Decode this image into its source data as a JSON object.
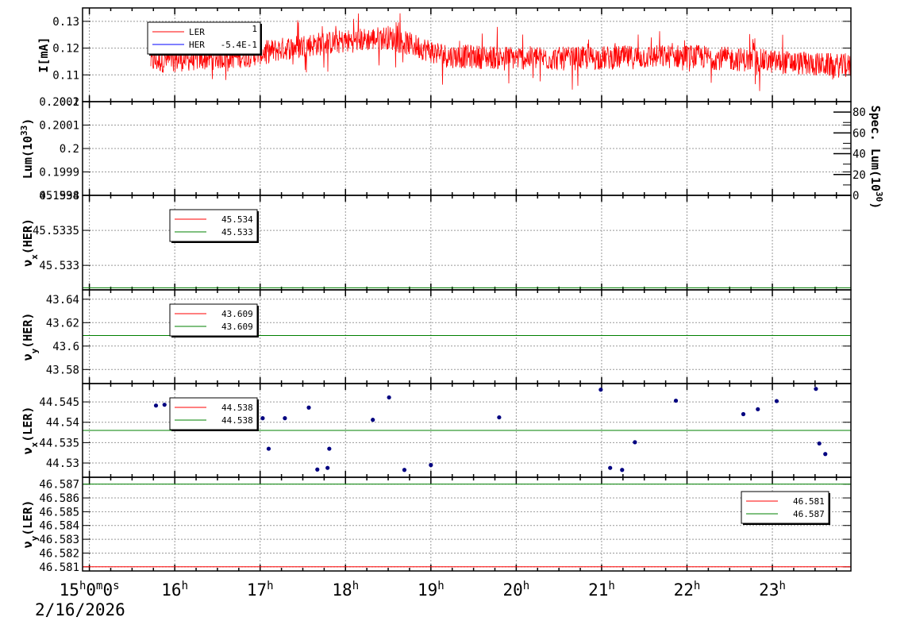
{
  "chart_data": [
    {
      "type": "line",
      "ylabel": "I[mA]",
      "ylim": [
        0.1,
        0.135
      ],
      "yticks": [
        "0.13",
        "0.12",
        "0.11",
        "0.1"
      ],
      "legend": {
        "placement": "top-left",
        "entries": [
          {
            "label": "LER",
            "extra": "1",
            "color": "#ff0000"
          },
          {
            "label": "HER",
            "extra": "-5.4E-1",
            "color": "#0000ff"
          }
        ]
      },
      "series": [
        {
          "name": "LER",
          "color": "#ff0000",
          "x_start_hours": 15.72,
          "x_end_hours": 24.0,
          "base": 0.114,
          "noise": 0.0045,
          "level_changes": [
            [
              15.72,
              0.115
            ],
            [
              16.8,
              0.117
            ],
            [
              17.5,
              0.121
            ],
            [
              18.5,
              0.124
            ],
            [
              19.2,
              0.117
            ],
            [
              20.5,
              0.116
            ],
            [
              22.0,
              0.117
            ],
            [
              23.0,
              0.115
            ],
            [
              24.0,
              0.113
            ]
          ]
        }
      ]
    },
    {
      "type": "line",
      "ylabel": "Lum(10^33)",
      "ylim": [
        0.1998,
        0.2002
      ],
      "yticks": [
        "0.2002",
        "0.2001",
        "0.2",
        "0.1999",
        "0.1998"
      ],
      "y2label": "Spec. Lum(10^30)",
      "y2lim": [
        0,
        90
      ],
      "y2ticks": [
        "80",
        "60",
        "40",
        "20",
        "0"
      ],
      "series": []
    },
    {
      "type": "line",
      "ylabel": "νx(HER)",
      "ylim": [
        45.53265,
        45.534
      ],
      "yticks": [
        "45.534",
        "45.5335",
        "45.533"
      ],
      "legend": {
        "placement": "top-left",
        "entries": [
          {
            "label": "45.534",
            "color": "#ff0000"
          },
          {
            "label": "45.533",
            "color": "#008000"
          }
        ]
      },
      "series": [
        {
          "name": "45.534",
          "color": "#ff0000",
          "value": 45.534
        },
        {
          "name": "45.533",
          "color": "#008000",
          "value": 45.53268
        }
      ]
    },
    {
      "type": "line",
      "ylabel": "νy(HER)",
      "ylim": [
        43.568,
        43.648
      ],
      "yticks": [
        "43.64",
        "43.62",
        "43.6",
        "43.58"
      ],
      "legend": {
        "placement": "top-left",
        "entries": [
          {
            "label": "43.609",
            "color": "#ff0000"
          },
          {
            "label": "43.609",
            "color": "#008000"
          }
        ]
      },
      "series": [
        {
          "name": "43.609",
          "color": "#ff0000",
          "value": 43.609
        },
        {
          "name": "43.609",
          "color": "#008000",
          "value": 43.609
        }
      ]
    },
    {
      "type": "scatter",
      "ylabel": "νx(LER)",
      "ylim": [
        44.5265,
        44.5495
      ],
      "yticks": [
        "44.545",
        "44.54",
        "44.535",
        "44.53"
      ],
      "legend": {
        "placement": "top-left",
        "entries": [
          {
            "label": "44.538",
            "color": "#ff0000"
          },
          {
            "label": "44.538",
            "color": "#008000"
          }
        ]
      },
      "series": [
        {
          "name": "44.538",
          "color": "#ff0000",
          "value": 44.538
        },
        {
          "name": "44.538",
          "color": "#008000",
          "value": 44.538
        },
        {
          "name": "points",
          "color": "#000080",
          "points": [
            [
              15.78,
              44.5441
            ],
            [
              15.88,
              44.5443
            ],
            [
              17.03,
              44.541
            ],
            [
              17.1,
              44.5335
            ],
            [
              17.29,
              44.541
            ],
            [
              17.57,
              44.5436
            ],
            [
              17.67,
              44.5284
            ],
            [
              17.79,
              44.5288
            ],
            [
              17.81,
              44.5335
            ],
            [
              18.32,
              44.5406
            ],
            [
              18.51,
              44.5461
            ],
            [
              18.69,
              44.5283
            ],
            [
              19.0,
              44.5295
            ],
            [
              19.8,
              44.5412
            ],
            [
              20.99,
              44.548
            ],
            [
              21.1,
              44.5288
            ],
            [
              21.24,
              44.5283
            ],
            [
              21.39,
              44.5351
            ],
            [
              21.87,
              44.5453
            ],
            [
              22.66,
              44.542
            ],
            [
              22.83,
              44.5432
            ],
            [
              23.05,
              44.5452
            ],
            [
              23.51,
              44.5482
            ],
            [
              23.55,
              44.5348
            ],
            [
              23.62,
              44.5322
            ]
          ]
        }
      ]
    },
    {
      "type": "line",
      "ylabel": "νy(LER)",
      "ylim": [
        46.5807,
        46.5875
      ],
      "yticks": [
        "46.587",
        "46.586",
        "46.585",
        "46.584",
        "46.583",
        "46.582",
        "46.581"
      ],
      "legend": {
        "placement": "top-right",
        "entries": [
          {
            "label": "46.581",
            "color": "#ff0000"
          },
          {
            "label": "46.587",
            "color": "#008000"
          }
        ]
      },
      "series": [
        {
          "name": "46.581",
          "color": "#ff0000",
          "value": 46.581
        },
        {
          "name": "46.587",
          "color": "#008000",
          "value": 46.587
        }
      ]
    }
  ],
  "xaxis": {
    "range_hours": [
      14.92,
      23.92
    ],
    "tick_labels": [
      {
        "hour": 15,
        "text": "15h0m0s"
      },
      {
        "hour": 16,
        "text": "16h"
      },
      {
        "hour": 17,
        "text": "17h"
      },
      {
        "hour": 18,
        "text": "18h"
      },
      {
        "hour": 19,
        "text": "19h"
      },
      {
        "hour": 20,
        "text": "20h"
      },
      {
        "hour": 21,
        "text": "21h"
      },
      {
        "hour": 22,
        "text": "22h"
      },
      {
        "hour": 23,
        "text": "23h"
      }
    ],
    "date": "2/16/2026"
  }
}
